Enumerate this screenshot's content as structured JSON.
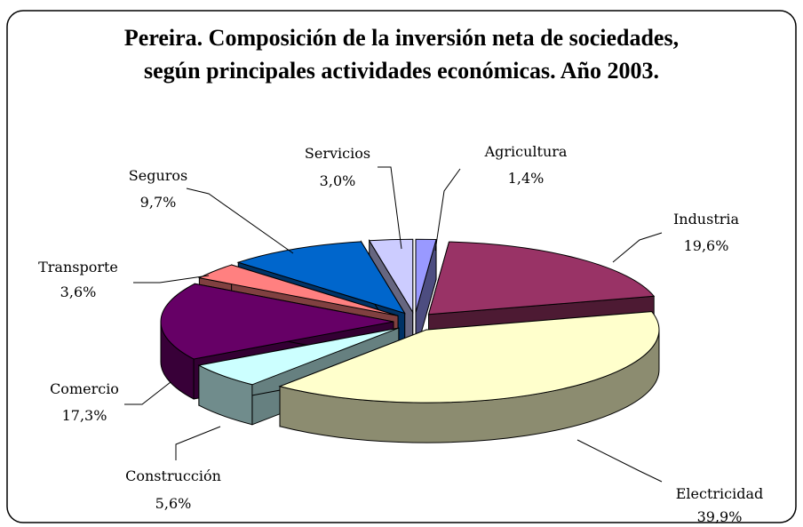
{
  "chart_data": {
    "type": "pie3d",
    "title": "Pereira. Composición de la inversión neta de sociedades, según principales actividades económicas. Año 2003.",
    "categories": [
      "Agricultura",
      "Industria",
      "Electricidad",
      "Construcción",
      "Comercio",
      "Transporte",
      "Seguros",
      "Servicios"
    ],
    "values": [
      1.4,
      19.6,
      39.9,
      5.6,
      17.3,
      3.6,
      9.7,
      3.0
    ],
    "value_labels": [
      "1,4%",
      "19,6%",
      "39,9%",
      "5,6%",
      "17,3%",
      "3,6%",
      "9,7%",
      "3,0%"
    ],
    "colors": [
      "#9999ff",
      "#993366",
      "#ffffcc",
      "#ccffff",
      "#660066",
      "#ff8080",
      "#0066cc",
      "#ccccff"
    ]
  }
}
